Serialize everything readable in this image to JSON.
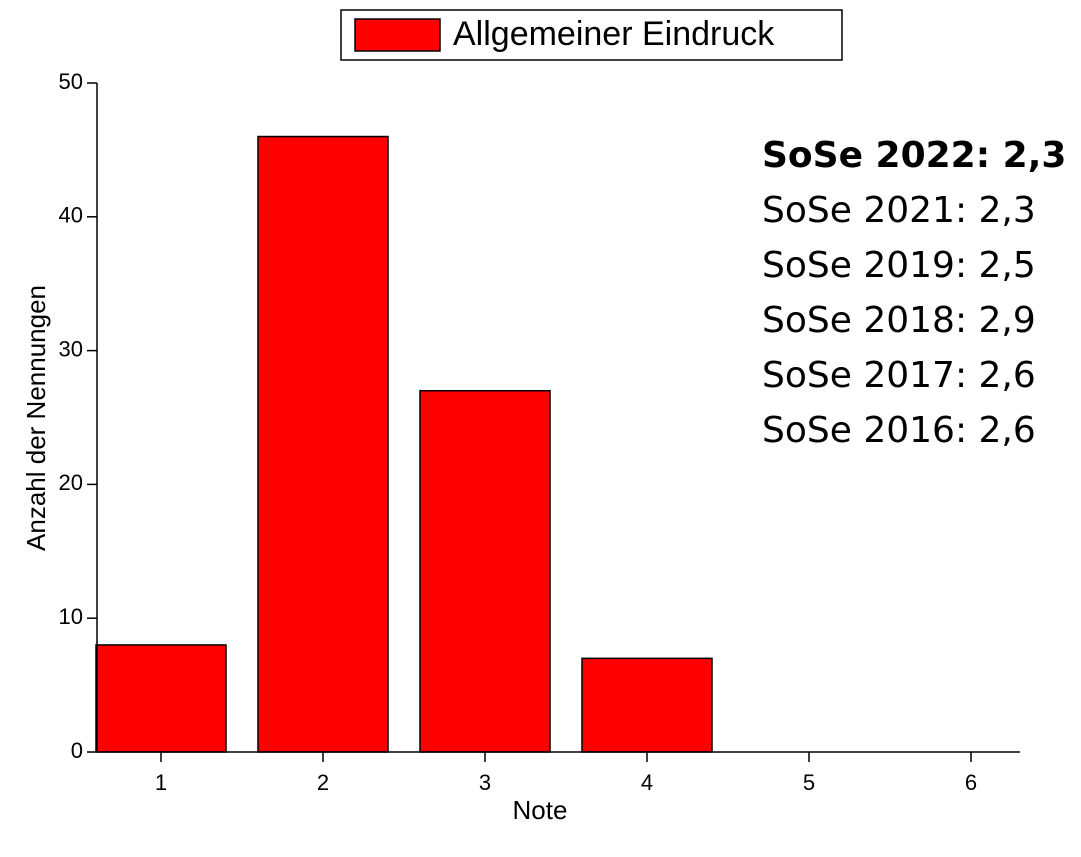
{
  "chart_data": {
    "type": "bar",
    "categories": [
      "1",
      "2",
      "3",
      "4",
      "5",
      "6"
    ],
    "series": [
      {
        "name": "Allgemeiner Eindruck",
        "color": "#ff0000",
        "values": [
          8,
          46,
          27,
          7,
          0,
          0
        ]
      }
    ],
    "x_label": "Note",
    "y_label": "Anzahl der Nennungen",
    "ylim": [
      0,
      50
    ],
    "yticks": [
      0,
      10,
      20,
      30,
      40,
      50
    ],
    "legend": "top",
    "annotations": [
      "SoSe 2022: 2,3",
      "SoSe 2021: 2,3",
      "SoSe 2019: 2,5",
      "SoSe 2018: 2,9",
      "SoSe 2017: 2,6",
      "SoSe 2016: 2,6"
    ]
  }
}
